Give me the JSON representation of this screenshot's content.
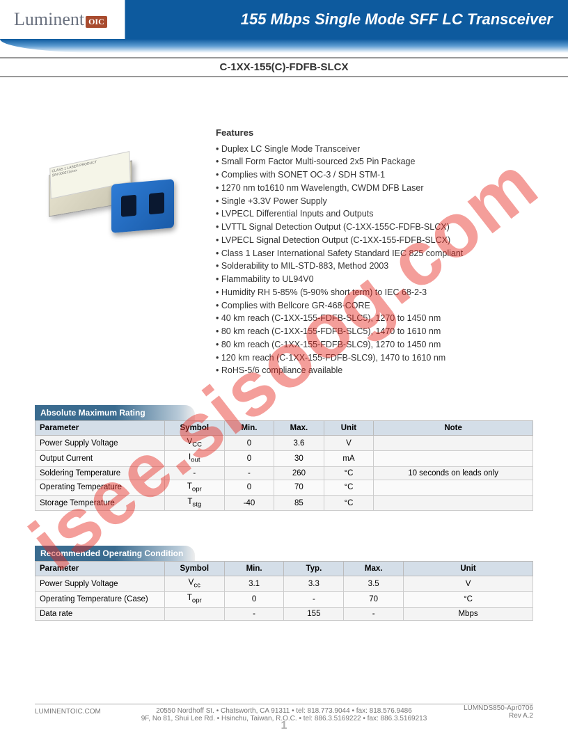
{
  "header": {
    "logo_text": "Luminent",
    "logo_suffix": "OIC",
    "title": "155 Mbps Single Mode SFF LC Transceiver"
  },
  "part_number": "C-1XX-155(C)-FDFB-SLCX",
  "features": {
    "heading": "Features",
    "items": [
      "Duplex LC Single Mode Transceiver",
      "Small Form Factor Multi-sourced 2x5 Pin Package",
      "Complies with SONET OC-3 / SDH STM-1",
      "1270 nm to1610 nm Wavelength, CWDM DFB Laser",
      "Single +3.3V Power Supply",
      "LVPECL Differential Inputs and Outputs",
      "LVTTL Signal Detection Output (C-1XX-155C-FDFB-SLCX)",
      "LVPECL Signal Detection Output (C-1XX-155-FDFB-SLCX)",
      "Class 1 Laser International Safety Standard IEC 825 compliant",
      "Solderability to MIL-STD-883, Method 2003",
      "Flammability to UL94V0",
      "Humidity RH 5-85% (5-90% short term) to IEC 68-2-3",
      "Complies with Bellcore GR-468-CORE",
      "40 km reach (C-1XX-155-FDFB-SLC5), 1270 to 1450 nm",
      "80 km reach (C-1XX-155-FDFB-SLC5), 1470 to 1610 nm",
      "80 km reach (C-1XX-155-FDFB-SLC9), 1270 to 1450 nm",
      "120 km reach (C-1XX-155-FDFB-SLC9), 1470 to 1610 nm",
      "RoHS-5/6 compliance available"
    ]
  },
  "table1": {
    "title": "Absolute Maximum Rating",
    "columns": [
      "Parameter",
      "Symbol",
      "Min.",
      "Max.",
      "Unit",
      "Note"
    ],
    "col_widths": [
      "26%",
      "12%",
      "10%",
      "10%",
      "10%",
      "32%"
    ],
    "rows": [
      [
        "Power Supply Voltage",
        "V<sub>CC</sub>",
        "0",
        "3.6",
        "V",
        ""
      ],
      [
        "Output Current",
        "I<sub>out</sub>",
        "0",
        "30",
        "mA",
        ""
      ],
      [
        "Soldering Temperature",
        "-",
        "-",
        "260",
        "°C",
        "10 seconds on leads only"
      ],
      [
        "Operating Temperature",
        "T<sub>opr</sub>",
        "0",
        "70",
        "°C",
        ""
      ],
      [
        "Storage Temperature",
        "T<sub>stg</sub>",
        "-40",
        "85",
        "°C",
        ""
      ]
    ]
  },
  "table2": {
    "title": "Recommended Operating Condition",
    "columns": [
      "Parameter",
      "Symbol",
      "Min.",
      "Typ.",
      "Max.",
      "Unit"
    ],
    "col_widths": [
      "26%",
      "12%",
      "12%",
      "12%",
      "12%",
      "26%"
    ],
    "rows": [
      [
        "Power Supply Voltage",
        "V<sub>cc</sub>",
        "3.1",
        "3.3",
        "3.5",
        "V"
      ],
      [
        "Operating Temperature (Case)",
        "T<sub>opr</sub>",
        "0",
        "-",
        "70",
        "°C"
      ],
      [
        "Data rate",
        "",
        "-",
        "155",
        "-",
        "Mbps"
      ]
    ]
  },
  "footer": {
    "left": "LUMINENTOIC.COM",
    "line1": "20550 Nordhoff St. • Chatsworth, CA  91311 • tel: 818.773.9044 • fax: 818.576.9486",
    "line2": "9F, No 81, Shui Lee Rd. • Hsinchu, Taiwan, R.O.C. • tel: 886.3.5169222 • fax: 886.3.5169213",
    "right1": "LUMNDS850-Apr0706",
    "right2": "Rev A.2",
    "page": "1"
  },
  "watermark": "isee.sisoog.com"
}
